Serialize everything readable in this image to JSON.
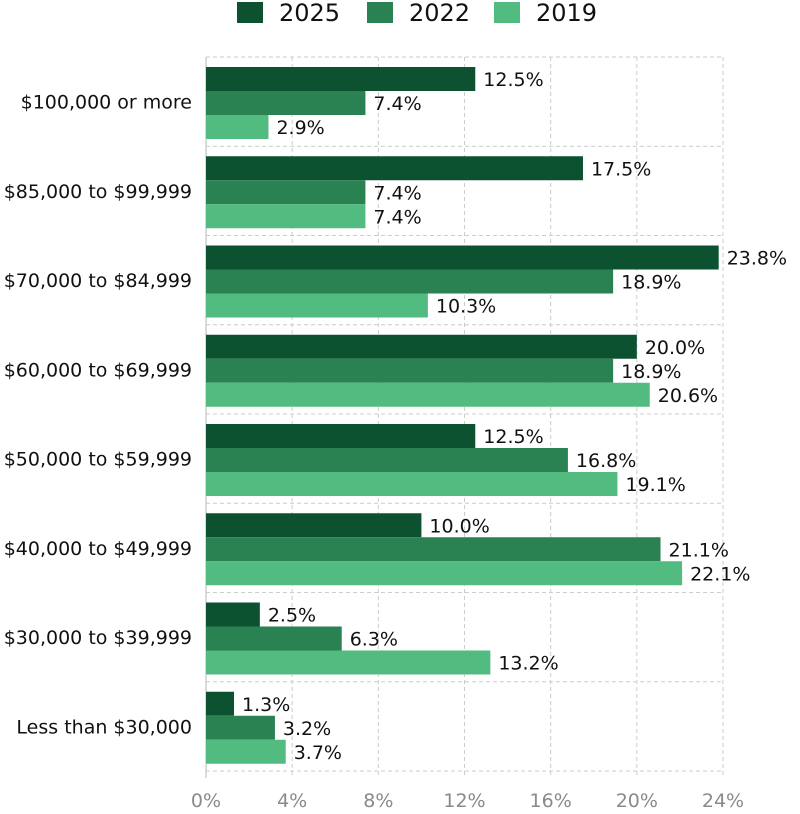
{
  "chart_data": {
    "type": "bar",
    "orientation": "horizontal",
    "title": "",
    "xlabel": "",
    "ylabel": "",
    "xlim": [
      0,
      24
    ],
    "x_ticks": [
      0,
      4,
      8,
      12,
      16,
      20,
      24
    ],
    "x_tick_labels": [
      "0%",
      "4%",
      "8%",
      "12%",
      "16%",
      "20%",
      "24%"
    ],
    "value_suffix": "%",
    "grid": true,
    "legend_position": "top",
    "categories": [
      "$100,000 or more",
      "$85,000 to $99,999",
      "$70,000 to $84,999",
      "$60,000 to $69,999",
      "$50,000 to $59,999",
      "$40,000 to $49,999",
      "$30,000 to $39,999",
      "Less than $30,000"
    ],
    "series": [
      {
        "name": "2025",
        "color": "#0d5230",
        "values": [
          12.5,
          17.5,
          23.8,
          20.0,
          12.5,
          10.0,
          2.5,
          1.3
        ]
      },
      {
        "name": "2022",
        "color": "#2a8152",
        "values": [
          7.4,
          7.4,
          18.9,
          18.9,
          16.8,
          21.1,
          6.3,
          3.2
        ]
      },
      {
        "name": "2019",
        "color": "#52bb80",
        "values": [
          2.9,
          7.4,
          10.3,
          20.6,
          19.1,
          22.1,
          13.2,
          3.7
        ]
      }
    ]
  }
}
